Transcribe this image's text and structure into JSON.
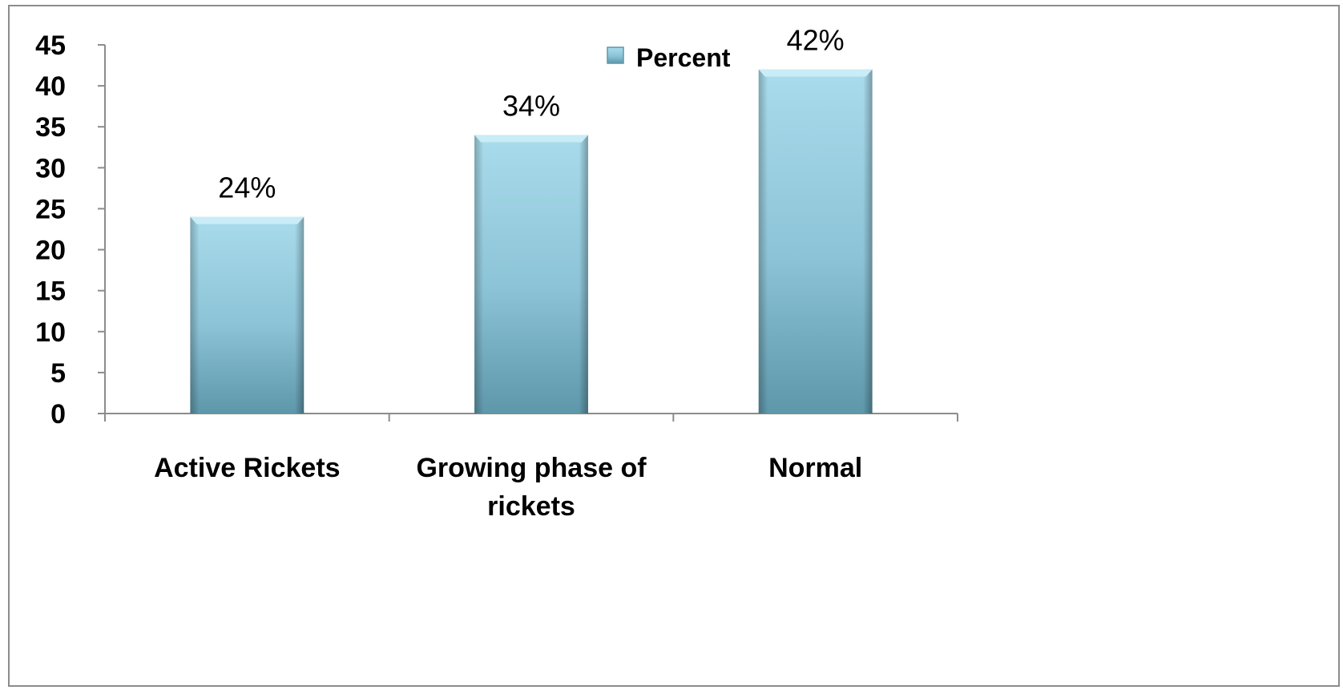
{
  "chart_data": {
    "type": "bar",
    "categories": [
      "Active Rickets",
      "Growing phase of rickets",
      "Normal"
    ],
    "category_lines": [
      [
        "Active Rickets"
      ],
      [
        "Growing phase of",
        "rickets"
      ],
      [
        "Normal"
      ]
    ],
    "series": [
      {
        "name": "Percent",
        "values": [
          24,
          34,
          42
        ],
        "data_labels": [
          "24%",
          "34%",
          "42%"
        ]
      }
    ],
    "ylim": [
      0,
      45
    ],
    "yticks": [
      0,
      5,
      10,
      15,
      20,
      25,
      30,
      35,
      40,
      45
    ],
    "title": "",
    "xlabel": "",
    "ylabel": "",
    "grid": false,
    "legend_position": "top-center",
    "colors": {
      "bar_light": "#a9dcec",
      "bar_mid": "#8cc3d6",
      "bar_dark": "#5e97aa",
      "axis": "#8c8c8c"
    }
  }
}
